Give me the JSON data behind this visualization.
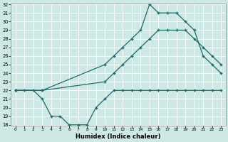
{
  "xlabel": "Humidex (Indice chaleur)",
  "bg_color": "#cde8e5",
  "line_color": "#1e6b6b",
  "grid_color": "#ffffff",
  "ylim": [
    18,
    32
  ],
  "xlim": [
    -0.5,
    23.5
  ],
  "yticks": [
    18,
    19,
    20,
    21,
    22,
    23,
    24,
    25,
    26,
    27,
    28,
    29,
    30,
    31,
    32
  ],
  "xticks": [
    0,
    1,
    2,
    3,
    4,
    5,
    6,
    7,
    8,
    9,
    10,
    11,
    12,
    13,
    14,
    15,
    16,
    17,
    18,
    19,
    20,
    21,
    22,
    23
  ],
  "line1_x": [
    0,
    1,
    2,
    3,
    4,
    5,
    6,
    7,
    8,
    9,
    10,
    11,
    12,
    13,
    14,
    15,
    16,
    17,
    18,
    19,
    20,
    21,
    22,
    23
  ],
  "line1_y": [
    22,
    22,
    22,
    21,
    19,
    19,
    18,
    18,
    18,
    20,
    21,
    22,
    22,
    22,
    22,
    22,
    22,
    22,
    22,
    22,
    22,
    22,
    22,
    22
  ],
  "line2_x": [
    0,
    3,
    10,
    11,
    12,
    13,
    14,
    15,
    16,
    17,
    18,
    19,
    20,
    21,
    22,
    23
  ],
  "line2_y": [
    22,
    22,
    23,
    24,
    25,
    26,
    27,
    28,
    29,
    29,
    29,
    29,
    28,
    27,
    26,
    25
  ],
  "line3_x": [
    0,
    3,
    10,
    11,
    12,
    13,
    14,
    15,
    16,
    17,
    18,
    19,
    20,
    21,
    22,
    23
  ],
  "line3_y": [
    22,
    22,
    25,
    26,
    27,
    28,
    29,
    32,
    31,
    31,
    31,
    30,
    29,
    26,
    25,
    24
  ]
}
